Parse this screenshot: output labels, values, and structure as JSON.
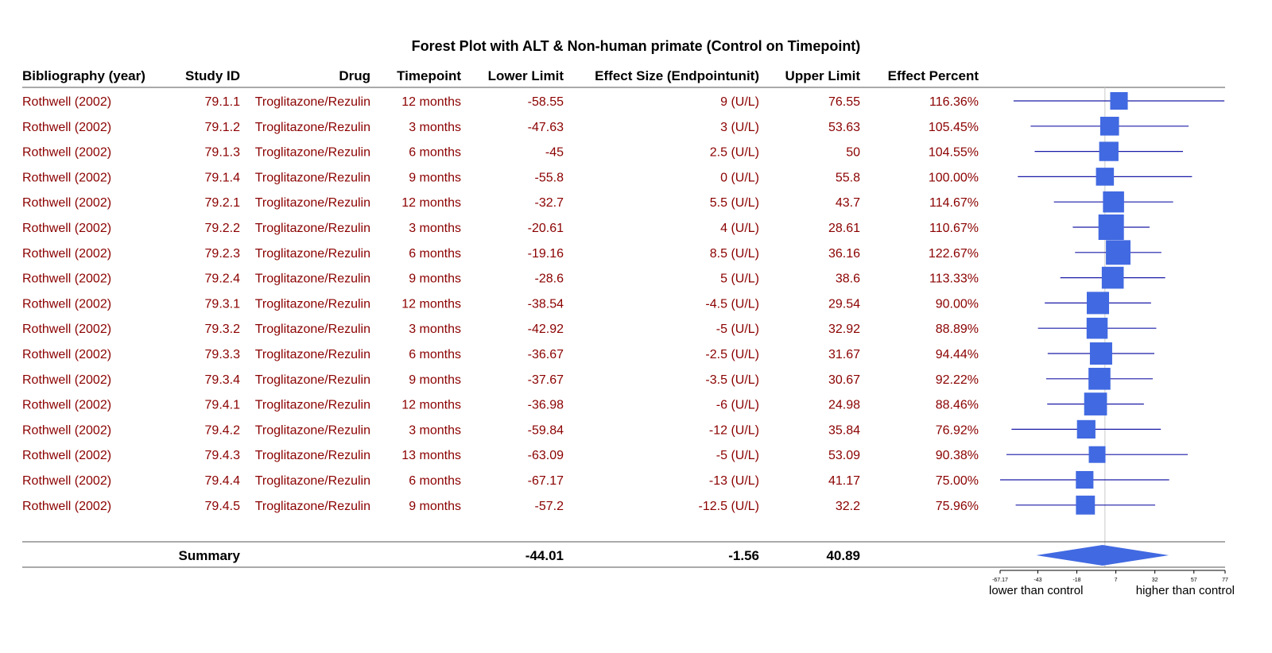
{
  "chart_data": {
    "type": "forest",
    "title": "Forest Plot with ALT & Non-human primate (Control on Timepoint)",
    "columns": [
      "Bibliography (year)",
      "Study ID",
      "Drug",
      "Timepoint",
      "Lower Limit",
      "Effect Size (Endpointunit)",
      "Upper Limit",
      "Effect Percent"
    ],
    "rows": [
      {
        "bib": "Rothwell (2002)",
        "id": "79.1.1",
        "drug": "Troglitazone/Rezulin",
        "timepoint": "12 months",
        "lower": -58.55,
        "lower_label": "-58.55",
        "effect": 9,
        "effect_label": "9 (U/L)",
        "upper": 76.55,
        "upper_label": "76.55",
        "percent": "116.36%",
        "weight": 0.55
      },
      {
        "bib": "Rothwell (2002)",
        "id": "79.1.2",
        "drug": "Troglitazone/Rezulin",
        "timepoint": "3 months",
        "lower": -47.63,
        "lower_label": "-47.63",
        "effect": 3,
        "effect_label": "3 (U/L)",
        "upper": 53.63,
        "upper_label": "53.63",
        "percent": "105.45%",
        "weight": 0.62
      },
      {
        "bib": "Rothwell (2002)",
        "id": "79.1.3",
        "drug": "Troglitazone/Rezulin",
        "timepoint": "6 months",
        "lower": -45,
        "lower_label": "-45",
        "effect": 2.5,
        "effect_label": "2.5 (U/L)",
        "upper": 50,
        "upper_label": "50",
        "percent": "104.55%",
        "weight": 0.65
      },
      {
        "bib": "Rothwell (2002)",
        "id": "79.1.4",
        "drug": "Troglitazone/Rezulin",
        "timepoint": "9 months",
        "lower": -55.8,
        "lower_label": "-55.8",
        "effect": 0,
        "effect_label": "0 (U/L)",
        "upper": 55.8,
        "upper_label": "55.8",
        "percent": "100.00%",
        "weight": 0.57
      },
      {
        "bib": "Rothwell (2002)",
        "id": "79.2.1",
        "drug": "Troglitazone/Rezulin",
        "timepoint": "12 months",
        "lower": -32.7,
        "lower_label": "-32.7",
        "effect": 5.5,
        "effect_label": "5.5 (U/L)",
        "upper": 43.7,
        "upper_label": "43.7",
        "percent": "114.67%",
        "weight": 0.75
      },
      {
        "bib": "Rothwell (2002)",
        "id": "79.2.2",
        "drug": "Troglitazone/Rezulin",
        "timepoint": "3 months",
        "lower": -20.61,
        "lower_label": "-20.61",
        "effect": 4,
        "effect_label": "4 (U/L)",
        "upper": 28.61,
        "upper_label": "28.61",
        "percent": "110.67%",
        "weight": 1.0
      },
      {
        "bib": "Rothwell (2002)",
        "id": "79.2.3",
        "drug": "Troglitazone/Rezulin",
        "timepoint": "6 months",
        "lower": -19.16,
        "lower_label": "-19.16",
        "effect": 8.5,
        "effect_label": "8.5 (U/L)",
        "upper": 36.16,
        "upper_label": "36.16",
        "percent": "122.67%",
        "weight": 0.95
      },
      {
        "bib": "Rothwell (2002)",
        "id": "79.2.4",
        "drug": "Troglitazone/Rezulin",
        "timepoint": "9 months",
        "lower": -28.6,
        "lower_label": "-28.6",
        "effect": 5,
        "effect_label": "5 (U/L)",
        "upper": 38.6,
        "upper_label": "38.6",
        "percent": "113.33%",
        "weight": 0.8
      },
      {
        "bib": "Rothwell (2002)",
        "id": "79.3.1",
        "drug": "Troglitazone/Rezulin",
        "timepoint": "12 months",
        "lower": -38.54,
        "lower_label": "-38.54",
        "effect": -4.5,
        "effect_label": "-4.5 (U/L)",
        "upper": 29.54,
        "upper_label": "29.54",
        "percent": "90.00%",
        "weight": 0.82
      },
      {
        "bib": "Rothwell (2002)",
        "id": "79.3.2",
        "drug": "Troglitazone/Rezulin",
        "timepoint": "3 months",
        "lower": -42.92,
        "lower_label": "-42.92",
        "effect": -5,
        "effect_label": "-5 (U/L)",
        "upper": 32.92,
        "upper_label": "32.92",
        "percent": "88.89%",
        "weight": 0.75
      },
      {
        "bib": "Rothwell (2002)",
        "id": "79.3.3",
        "drug": "Troglitazone/Rezulin",
        "timepoint": "6 months",
        "lower": -36.67,
        "lower_label": "-36.67",
        "effect": -2.5,
        "effect_label": "-2.5 (U/L)",
        "upper": 31.67,
        "upper_label": "31.67",
        "percent": "94.44%",
        "weight": 0.82
      },
      {
        "bib": "Rothwell (2002)",
        "id": "79.3.4",
        "drug": "Troglitazone/Rezulin",
        "timepoint": "9 months",
        "lower": -37.67,
        "lower_label": "-37.67",
        "effect": -3.5,
        "effect_label": "-3.5 (U/L)",
        "upper": 30.67,
        "upper_label": "30.67",
        "percent": "92.22%",
        "weight": 0.8
      },
      {
        "bib": "Rothwell (2002)",
        "id": "79.4.1",
        "drug": "Troglitazone/Rezulin",
        "timepoint": "12 months",
        "lower": -36.98,
        "lower_label": "-36.98",
        "effect": -6,
        "effect_label": "-6 (U/L)",
        "upper": 24.98,
        "upper_label": "24.98",
        "percent": "88.46%",
        "weight": 0.85
      },
      {
        "bib": "Rothwell (2002)",
        "id": "79.4.2",
        "drug": "Troglitazone/Rezulin",
        "timepoint": "3 months",
        "lower": -59.84,
        "lower_label": "-59.84",
        "effect": -12,
        "effect_label": "-12 (U/L)",
        "upper": 35.84,
        "upper_label": "35.84",
        "percent": "76.92%",
        "weight": 0.6
      },
      {
        "bib": "Rothwell (2002)",
        "id": "79.4.3",
        "drug": "Troglitazone/Rezulin",
        "timepoint": "13 months",
        "lower": -63.09,
        "lower_label": "-63.09",
        "effect": -5,
        "effect_label": "-5 (U/L)",
        "upper": 53.09,
        "upper_label": "53.09",
        "percent": "90.38%",
        "weight": 0.5
      },
      {
        "bib": "Rothwell (2002)",
        "id": "79.4.4",
        "drug": "Troglitazone/Rezulin",
        "timepoint": "6 months",
        "lower": -67.17,
        "lower_label": "-67.17",
        "effect": -13,
        "effect_label": "-13 (U/L)",
        "upper": 41.17,
        "upper_label": "41.17",
        "percent": "75.00%",
        "weight": 0.55
      },
      {
        "bib": "Rothwell (2002)",
        "id": "79.4.5",
        "drug": "Troglitazone/Rezulin",
        "timepoint": "9 months",
        "lower": -57.2,
        "lower_label": "-57.2",
        "effect": -12.5,
        "effect_label": "-12.5 (U/L)",
        "upper": 32.2,
        "upper_label": "32.2",
        "percent": "75.96%",
        "weight": 0.63
      }
    ],
    "summary": {
      "label": "Summary",
      "lower": -44.01,
      "lower_label": "-44.01",
      "effect": -1.56,
      "effect_label": "-1.56",
      "upper": 40.89,
      "upper_label": "40.89"
    },
    "xlim": [
      -67.17,
      77
    ],
    "xticks": [
      -67.17,
      -43,
      -18,
      7,
      32,
      57,
      77
    ],
    "xtick_labels": [
      "-67.17",
      "-43",
      "-18",
      "7",
      "32",
      "57",
      "77"
    ],
    "reference_line": 0,
    "xlabel_left": "lower than control",
    "xlabel_right": "higher than control",
    "colors": {
      "text_rows": "#8b0000",
      "header": "#000000",
      "marker": "#4169e1",
      "ci_line": "#1a1aa8",
      "reference": "#c8c8c8",
      "rule": "#555555"
    }
  }
}
